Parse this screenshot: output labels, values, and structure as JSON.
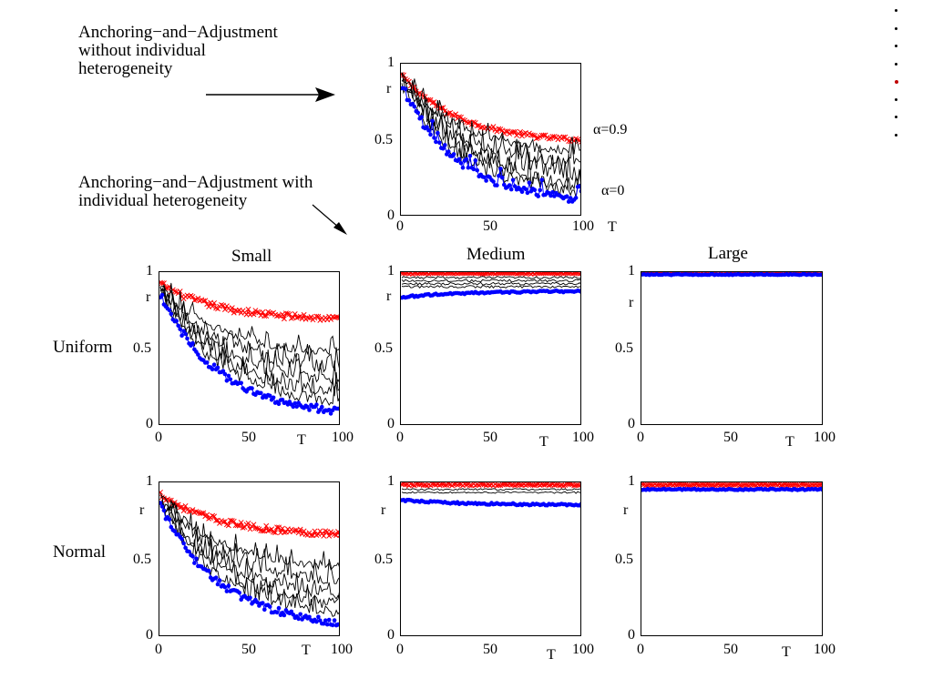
{
  "annotations": {
    "without": "Anchoring−and−Adjustment\nwithout individual\nheterogeneity",
    "with": "Anchoring−and−Adjustment with\nindividual heterogeneity"
  },
  "columns": [
    "Small",
    "Medium",
    "Large"
  ],
  "rows": [
    "Uniform",
    "Normal"
  ],
  "axis": {
    "ylabel": "r",
    "xlabel": "T",
    "xticks": [
      "0",
      "50",
      "100"
    ],
    "yticks": [
      "0",
      "0.5",
      "1"
    ]
  },
  "curve_labels": {
    "top": "α=0.9",
    "bottom": "α=0"
  },
  "colors": {
    "top_series": "#ff0000",
    "bottom_series": "#0000ff",
    "mid_series": "#000000",
    "nav_active": "#c00000"
  },
  "navigation": {
    "dot_count": 8,
    "active_index": 4
  },
  "chart_data": [
    {
      "id": "reference",
      "type": "line",
      "title": "",
      "xlabel": "T",
      "ylabel": "r",
      "xlim": [
        0,
        100
      ],
      "ylim": [
        0,
        1
      ],
      "x": [
        0,
        100
      ],
      "series": [
        {
          "name": "α=0.9",
          "start": 0.93,
          "end": 0.5,
          "noise": 0.015
        },
        {
          "name": "",
          "start": 0.92,
          "end": 0.42,
          "noise": 0.03
        },
        {
          "name": "",
          "start": 0.91,
          "end": 0.34,
          "noise": 0.04
        },
        {
          "name": "",
          "start": 0.9,
          "end": 0.27,
          "noise": 0.05
        },
        {
          "name": "",
          "start": 0.89,
          "end": 0.21,
          "noise": 0.05
        },
        {
          "name": "",
          "start": 0.88,
          "end": 0.16,
          "noise": 0.05
        },
        {
          "name": "α=0",
          "start": 0.86,
          "end": 0.1,
          "noise": 0.03
        }
      ]
    },
    {
      "id": "uniform-small",
      "type": "line",
      "title": "Small",
      "xlabel": "T",
      "ylabel": "r",
      "xlim": [
        0,
        100
      ],
      "ylim": [
        0,
        1
      ],
      "x": [
        0,
        100
      ],
      "series": [
        {
          "name": "",
          "start": 0.93,
          "end": 0.7,
          "noise": 0.02
        },
        {
          "name": "",
          "start": 0.92,
          "end": 0.48,
          "noise": 0.03
        },
        {
          "name": "",
          "start": 0.91,
          "end": 0.38,
          "noise": 0.04
        },
        {
          "name": "",
          "start": 0.9,
          "end": 0.3,
          "noise": 0.04
        },
        {
          "name": "",
          "start": 0.89,
          "end": 0.22,
          "noise": 0.04
        },
        {
          "name": "",
          "start": 0.88,
          "end": 0.16,
          "noise": 0.04
        },
        {
          "name": "",
          "start": 0.86,
          "end": 0.09,
          "noise": 0.025
        }
      ]
    },
    {
      "id": "uniform-medium",
      "type": "line",
      "title": "Medium",
      "xlabel": "T",
      "ylabel": "r",
      "xlim": [
        0,
        100
      ],
      "ylim": [
        0,
        1
      ],
      "x": [
        0,
        100
      ],
      "series": [
        {
          "name": "",
          "start": 1.0,
          "end": 1.0,
          "noise": 0.006
        },
        {
          "name": "",
          "start": 0.97,
          "end": 0.97,
          "noise": 0.008
        },
        {
          "name": "",
          "start": 0.95,
          "end": 0.95,
          "noise": 0.008
        },
        {
          "name": "",
          "start": 0.93,
          "end": 0.93,
          "noise": 0.008
        },
        {
          "name": "",
          "start": 0.91,
          "end": 0.91,
          "noise": 0.008
        },
        {
          "name": "",
          "start": 0.84,
          "end": 0.88,
          "noise": 0.006
        }
      ]
    },
    {
      "id": "uniform-large",
      "type": "line",
      "title": "Large",
      "xlabel": "T",
      "ylabel": "r",
      "xlim": [
        0,
        100
      ],
      "ylim": [
        0,
        1
      ],
      "x": [
        0,
        100
      ],
      "series": [
        {
          "name": "",
          "start": 1.0,
          "end": 1.0,
          "noise": 0.003
        },
        {
          "name": "",
          "start": 0.99,
          "end": 0.99,
          "noise": 0.003
        }
      ]
    },
    {
      "id": "normal-small",
      "type": "line",
      "title": "",
      "xlabel": "T",
      "ylabel": "r",
      "xlim": [
        0,
        100
      ],
      "ylim": [
        0,
        1
      ],
      "x": [
        0,
        100
      ],
      "series": [
        {
          "name": "",
          "start": 0.93,
          "end": 0.67,
          "noise": 0.02
        },
        {
          "name": "",
          "start": 0.92,
          "end": 0.46,
          "noise": 0.03
        },
        {
          "name": "",
          "start": 0.91,
          "end": 0.37,
          "noise": 0.04
        },
        {
          "name": "",
          "start": 0.9,
          "end": 0.28,
          "noise": 0.04
        },
        {
          "name": "",
          "start": 0.89,
          "end": 0.21,
          "noise": 0.04
        },
        {
          "name": "",
          "start": 0.88,
          "end": 0.15,
          "noise": 0.04
        },
        {
          "name": "",
          "start": 0.86,
          "end": 0.09,
          "noise": 0.025
        }
      ]
    },
    {
      "id": "normal-medium",
      "type": "line",
      "title": "",
      "xlabel": "T",
      "ylabel": "r",
      "xlim": [
        0,
        100
      ],
      "ylim": [
        0,
        1
      ],
      "x": [
        0,
        100
      ],
      "series": [
        {
          "name": "",
          "start": 0.99,
          "end": 0.99,
          "noise": 0.006
        },
        {
          "name": "",
          "start": 0.96,
          "end": 0.96,
          "noise": 0.006
        },
        {
          "name": "",
          "start": 0.94,
          "end": 0.94,
          "noise": 0.006
        },
        {
          "name": "",
          "start": 0.89,
          "end": 0.86,
          "noise": 0.006
        }
      ]
    },
    {
      "id": "normal-large",
      "type": "line",
      "title": "",
      "xlabel": "T",
      "ylabel": "r",
      "xlim": [
        0,
        100
      ],
      "ylim": [
        0,
        1
      ],
      "x": [
        0,
        100
      ],
      "series": [
        {
          "name": "",
          "start": 0.99,
          "end": 0.99,
          "noise": 0.004
        },
        {
          "name": "",
          "start": 0.96,
          "end": 0.96,
          "noise": 0.004
        }
      ]
    }
  ]
}
